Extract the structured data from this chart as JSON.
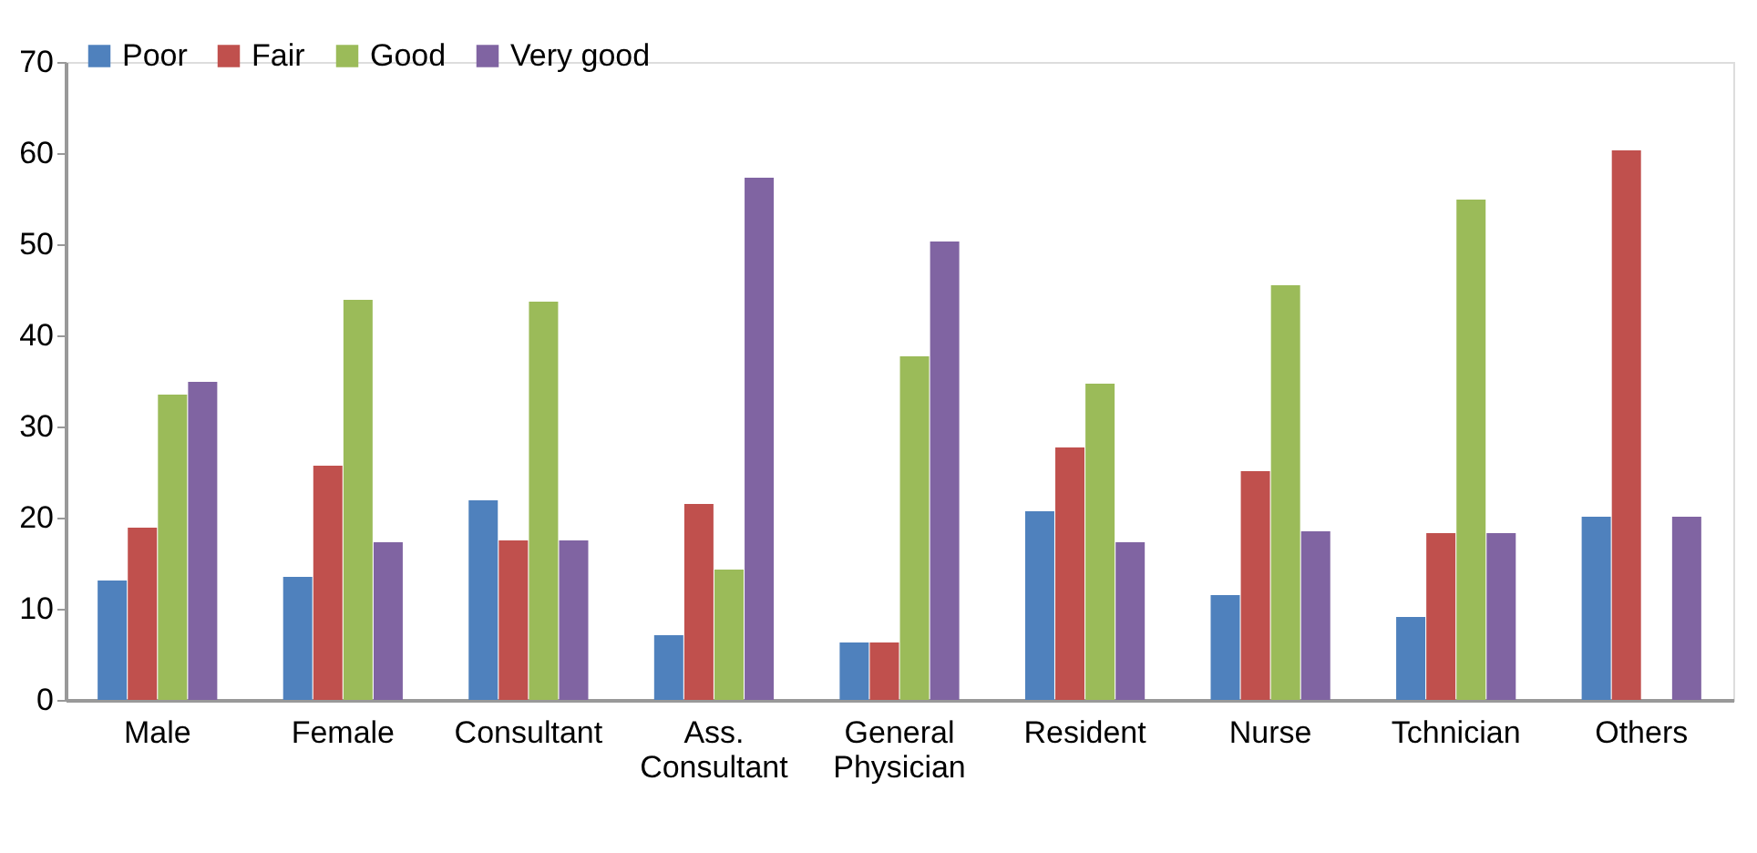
{
  "chart_data": {
    "type": "bar",
    "categories": [
      "Male",
      "Female",
      "Consultant",
      "Ass. Consultant",
      "General Physician",
      "Resident",
      "Nurse",
      "Tchnician",
      "Others"
    ],
    "series": [
      {
        "name": "Poor",
        "color": "#4f81bd",
        "values": [
          13.1,
          13.5,
          21.9,
          7.1,
          6.3,
          20.7,
          11.5,
          9.1,
          20.1
        ]
      },
      {
        "name": "Fair",
        "color": "#c0504d",
        "values": [
          18.9,
          25.7,
          17.5,
          21.5,
          6.3,
          27.7,
          25.1,
          18.3,
          60.3
        ]
      },
      {
        "name": "Good",
        "color": "#9bbb59",
        "values": [
          33.5,
          43.9,
          43.7,
          14.3,
          37.7,
          34.7,
          45.5,
          54.9,
          0
        ]
      },
      {
        "name": "Very good",
        "color": "#8064a2",
        "values": [
          34.9,
          17.3,
          17.5,
          57.3,
          50.3,
          17.3,
          18.5,
          18.3,
          20.1
        ]
      }
    ],
    "ylim": [
      0,
      70
    ],
    "yticks": [
      0,
      10,
      20,
      30,
      40,
      50,
      60,
      70
    ],
    "grid": false,
    "legend": "top left"
  }
}
